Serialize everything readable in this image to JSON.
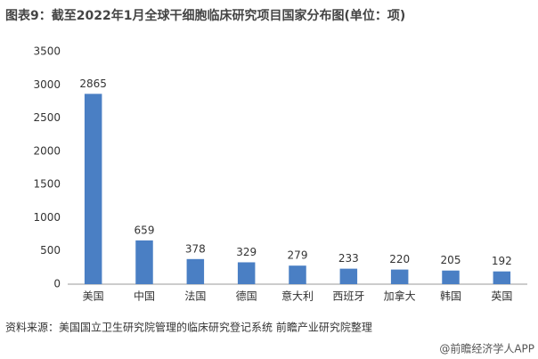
{
  "chart_data": {
    "type": "bar",
    "title": "图表9：截至2022年1月全球干细胞临床研究项目国家分布图(单位：项)",
    "categories": [
      "美国",
      "中国",
      "法国",
      "德国",
      "意大利",
      "西班牙",
      "加拿大",
      "韩国",
      "英国"
    ],
    "values": [
      2865,
      659,
      378,
      329,
      279,
      233,
      220,
      205,
      192
    ],
    "color": "#4a7fc4",
    "ylim": [
      0,
      3500
    ],
    "yticks": [
      0,
      500,
      1000,
      1500,
      2000,
      2500,
      3000,
      3500
    ],
    "grid": false,
    "source": "资料来源：美国国立卫生研究院管理的临床研究登记系统 前瞻产业研究院整理",
    "watermark": "@前瞻经济学人APP"
  }
}
